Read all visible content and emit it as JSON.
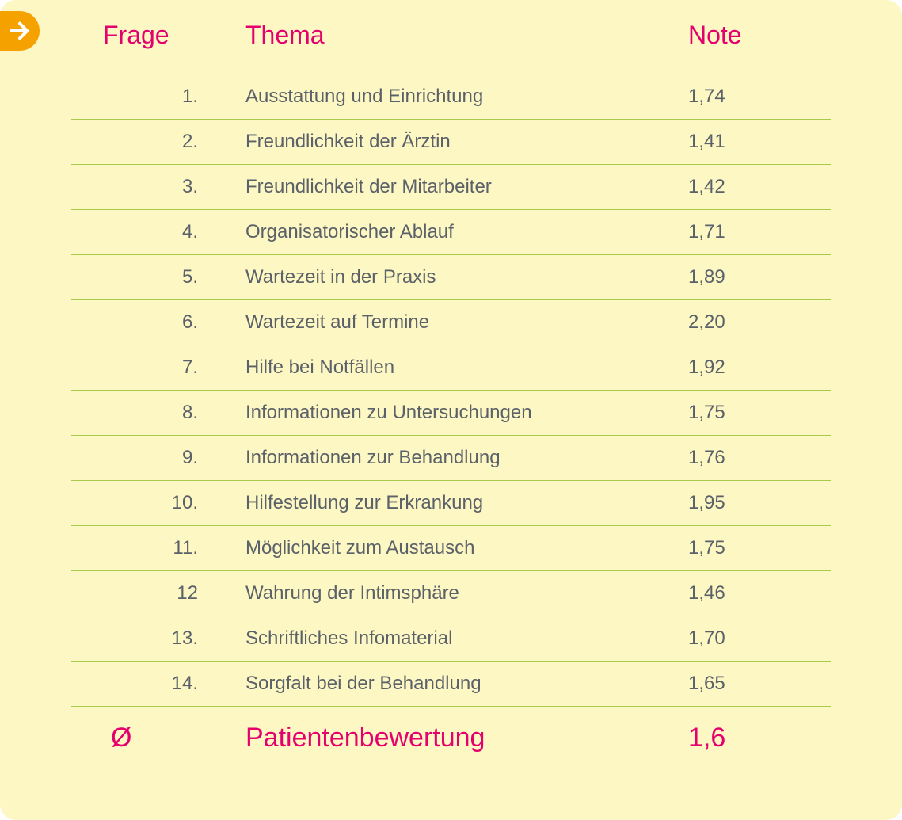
{
  "header": {
    "col_frage": "Frage",
    "col_thema": "Thema",
    "col_note": "Note"
  },
  "rows": [
    {
      "num": "1.",
      "thema": "Ausstattung und Einrichtung",
      "note": "1,74"
    },
    {
      "num": "2.",
      "thema": "Freundlichkeit der Ärztin",
      "note": "1,41"
    },
    {
      "num": "3.",
      "thema": "Freundlichkeit der Mitarbeiter",
      "note": "1,42"
    },
    {
      "num": "4.",
      "thema": "Organisatorischer Ablauf",
      "note": "1,71"
    },
    {
      "num": "5.",
      "thema": "Wartezeit in der Praxis",
      "note": "1,89"
    },
    {
      "num": "6.",
      "thema": "Wartezeit auf Termine",
      "note": "2,20"
    },
    {
      "num": "7.",
      "thema": "Hilfe bei Notfällen",
      "note": "1,92"
    },
    {
      "num": "8.",
      "thema": "Informationen zu Untersuchungen",
      "note": "1,75"
    },
    {
      "num": "9.",
      "thema": "Informationen zur Behandlung",
      "note": "1,76"
    },
    {
      "num": "10.",
      "thema": "Hilfestellung zur Erkrankung",
      "note": "1,95"
    },
    {
      "num": "11.",
      "thema": "Möglichkeit zum Austausch",
      "note": "1,75"
    },
    {
      "num": "12",
      "thema": "Wahrung der Intimsphäre",
      "note": "1,46"
    },
    {
      "num": "13.",
      "thema": "Schriftliches Infomaterial",
      "note": "1,70"
    },
    {
      "num": "14.",
      "thema": "Sorgfalt bei der Behandlung",
      "note": "1,65"
    }
  ],
  "summary": {
    "symbol": "Ø",
    "label": "Patientenbewertung",
    "value": "1,6"
  },
  "style": {
    "card_background": "#fdf7c4",
    "card_border_radius": 20,
    "accent_color": "#e4006d",
    "row_border_color": "#a8c94a",
    "text_color": "#5b6168",
    "header_fontsize": 32,
    "row_fontsize": 24,
    "summary_fontsize": 34,
    "badge_color": "#f5a200",
    "arrow_color": "#ffffff"
  }
}
